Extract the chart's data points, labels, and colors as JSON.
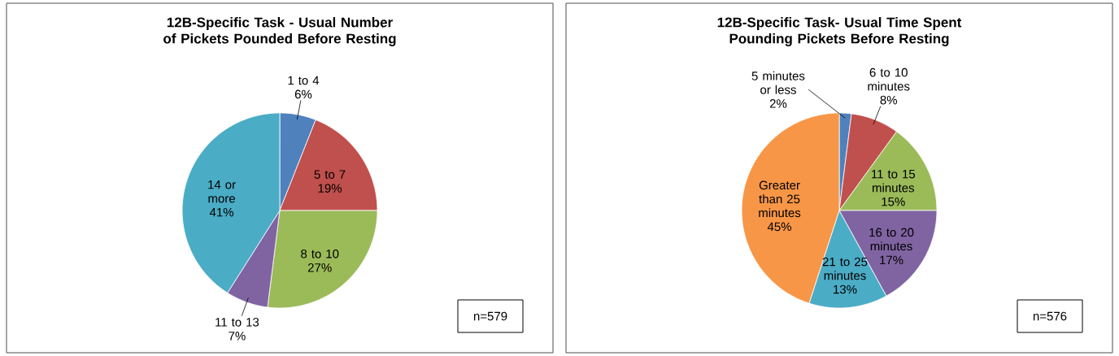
{
  "chart_data": [
    {
      "type": "pie",
      "title": "12B-Specific Task - Usual Number of Pickets Pounded Before Resting",
      "categories": [
        "1 to 4",
        "5 to 7",
        "8 to 10",
        "11 to 13",
        "14 or more"
      ],
      "values": [
        6,
        19,
        27,
        7,
        41
      ],
      "value_labels": [
        "6%",
        "19%",
        "27%",
        "7%",
        "41%"
      ],
      "colors": [
        "#4f81bd",
        "#c0504d",
        "#9bbb59",
        "#8064a2",
        "#4bacc6"
      ],
      "annotations": [
        "n=579"
      ]
    },
    {
      "type": "pie",
      "title": "12B-Specific Task- Usual Time Spent Pounding Pickets Before Resting",
      "categories": [
        "5 minutes or less",
        "6 to 10 minutes",
        "11 to 15 minutes",
        "16 to 20 minutes",
        "21 to 25 minutes",
        "Greater than 25 minutes"
      ],
      "values": [
        2,
        8,
        15,
        17,
        13,
        45
      ],
      "value_labels": [
        "2%",
        "8%",
        "15%",
        "17%",
        "13%",
        "45%"
      ],
      "colors": [
        "#4f81bd",
        "#c0504d",
        "#9bbb59",
        "#8064a2",
        "#4bacc6",
        "#f79646"
      ],
      "annotations": [
        "n=576"
      ]
    }
  ]
}
